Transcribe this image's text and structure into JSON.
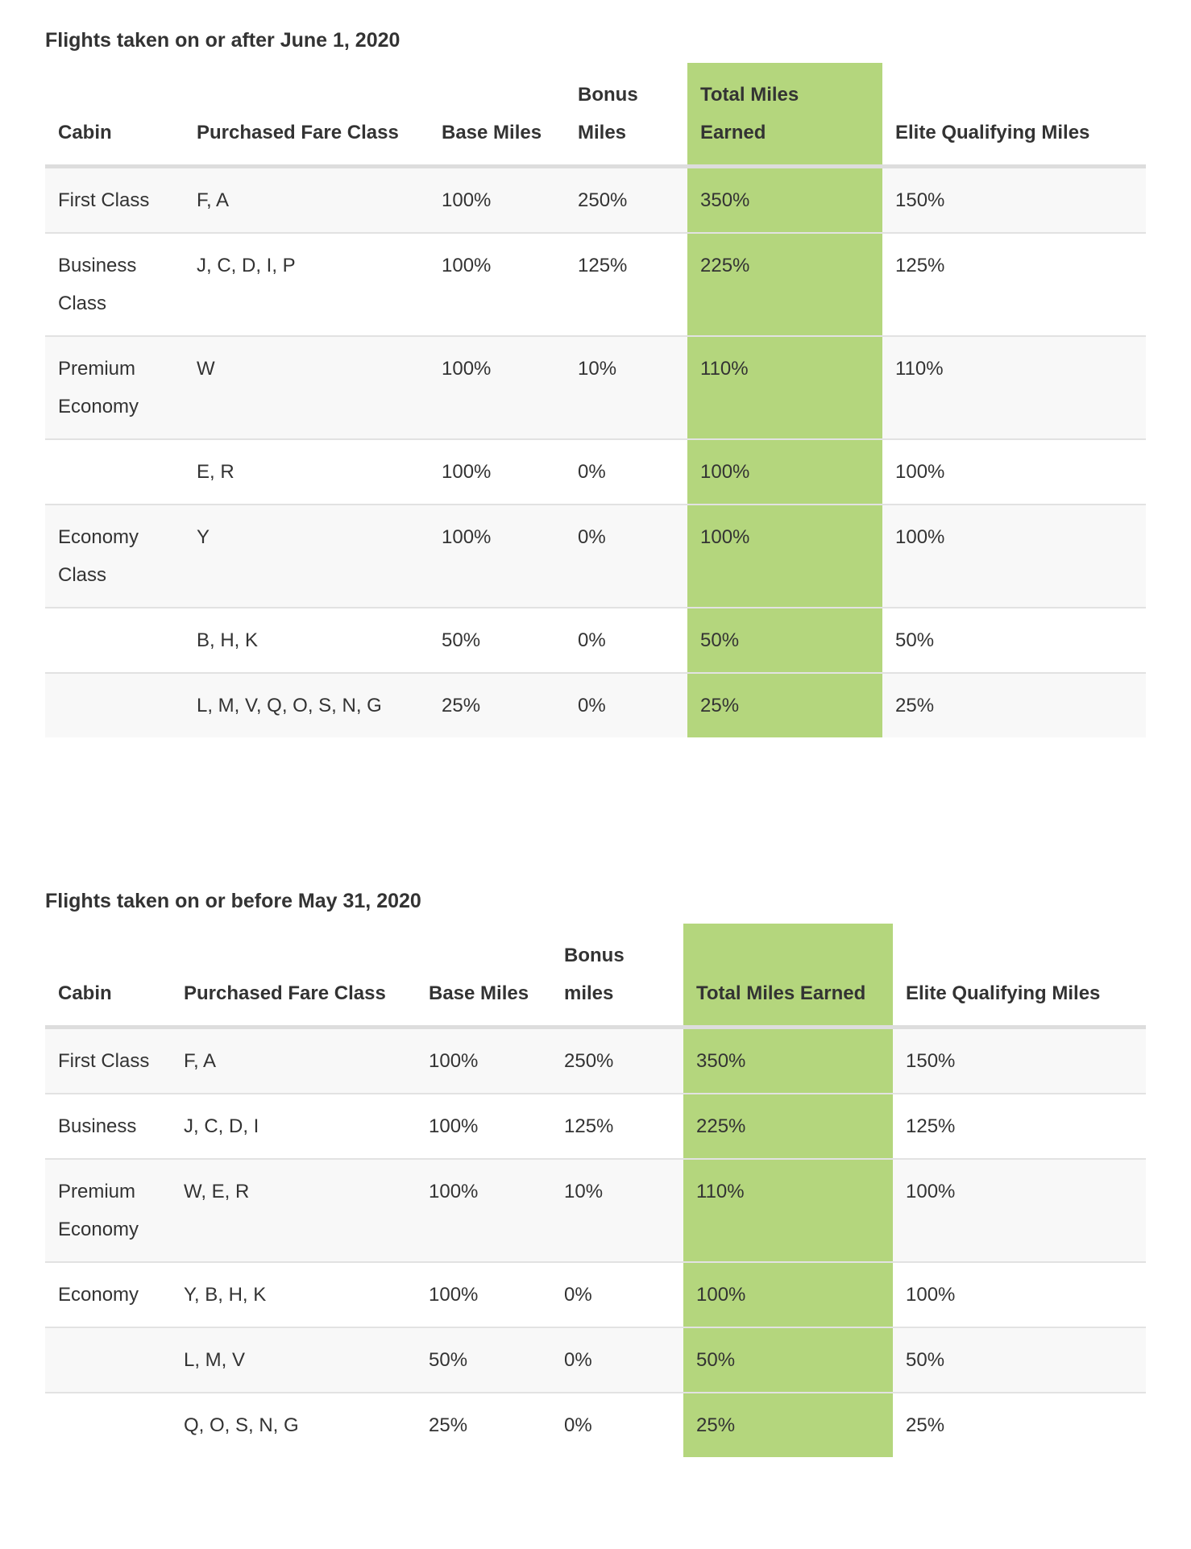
{
  "colors": {
    "highlight": "#b4d67d",
    "row_alt": "#f8f8f8",
    "text": "#333333"
  },
  "tables": [
    {
      "title": "Flights taken on or after June 1, 2020",
      "headers": [
        "Cabin",
        "Purchased Fare Class",
        "Base Miles",
        "Bonus Miles",
        "Total Miles Earned",
        "Elite Qualifying Miles"
      ],
      "rows": [
        [
          "First Class",
          "F, A",
          "100%",
          "250%",
          "350%",
          "150%"
        ],
        [
          "Business Class",
          "J, C, D, I, P",
          "100%",
          "125%",
          "225%",
          "125%"
        ],
        [
          "Premium Economy",
          "W",
          "100%",
          "10%",
          "110%",
          "110%"
        ],
        [
          "",
          "E, R",
          "100%",
          "0%",
          "100%",
          "100%"
        ],
        [
          "Economy Class",
          "Y",
          "100%",
          "0%",
          "100%",
          "100%"
        ],
        [
          "",
          "B, H, K",
          "50%",
          "0%",
          "50%",
          "50%"
        ],
        [
          "",
          "L, M, V, Q, O, S, N, G",
          "25%",
          "0%",
          "25%",
          "25%"
        ]
      ]
    },
    {
      "title": "Flights taken on or before May 31, 2020",
      "headers": [
        "Cabin",
        "Purchased Fare Class",
        "Base Miles",
        "Bonus miles",
        "Total Miles Earned",
        "Elite Qualifying Miles"
      ],
      "rows": [
        [
          "First Class",
          "F, A",
          "100%",
          "250%",
          "350%",
          "150%"
        ],
        [
          "Business",
          "J, C, D, I",
          "100%",
          "125%",
          "225%",
          "125%"
        ],
        [
          "Premium Economy",
          "W, E, R",
          "100%",
          "10%",
          "110%",
          "100%"
        ],
        [
          "Economy",
          "Y, B, H, K",
          "100%",
          "0%",
          "100%",
          "100%"
        ],
        [
          "",
          "L, M, V",
          "50%",
          "0%",
          "50%",
          "50%"
        ],
        [
          "",
          "Q, O, S, N, G",
          "25%",
          "0%",
          "25%",
          "25%"
        ]
      ]
    }
  ]
}
